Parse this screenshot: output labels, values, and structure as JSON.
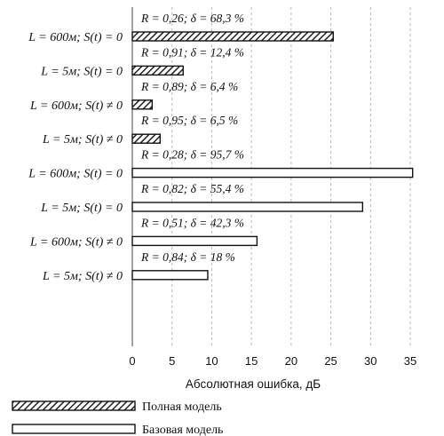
{
  "chart_data": {
    "type": "bar",
    "orientation": "horizontal",
    "xlabel": "Абсолютная ошибка, дБ",
    "xlim": [
      0,
      35
    ],
    "xticks": [
      0,
      5,
      10,
      15,
      20,
      25,
      30,
      35
    ],
    "grid": "vertical dashed",
    "legend_position": "bottom",
    "categories": [
      "L = 600м;  S(t) = 0",
      "L = 5м;  S(t) = 0",
      "L = 600м;  S(t) ≠ 0",
      "L = 5м;  S(t) ≠ 0",
      "L = 600м;  S(t) = 0",
      "L = 5м;  S(t) = 0",
      "L = 600м;  S(t) ≠ 0",
      "L = 5м;  S(t) ≠ 0"
    ],
    "values": [
      25.3,
      6.4,
      2.5,
      3.5,
      35.3,
      29.0,
      15.7,
      9.5
    ],
    "series_index": [
      0,
      0,
      0,
      0,
      1,
      1,
      1,
      1
    ],
    "annotations": [
      "R = 0,26;  δ = 68,3 %",
      "R = 0,91;  δ = 12,4 %",
      "R = 0,89;  δ = 6,4 %",
      "R = 0,95;  δ = 6,5 %",
      "R = 0,28;  δ = 95,7 %",
      "R = 0,82;  δ = 55,4 %",
      "R = 0,51;  δ = 42,3 %",
      "R = 0,84;  δ = 18 %"
    ],
    "series": [
      {
        "name": "Полная модель",
        "pattern": "hatched"
      },
      {
        "name": "Базовая модель",
        "pattern": "white"
      }
    ]
  }
}
